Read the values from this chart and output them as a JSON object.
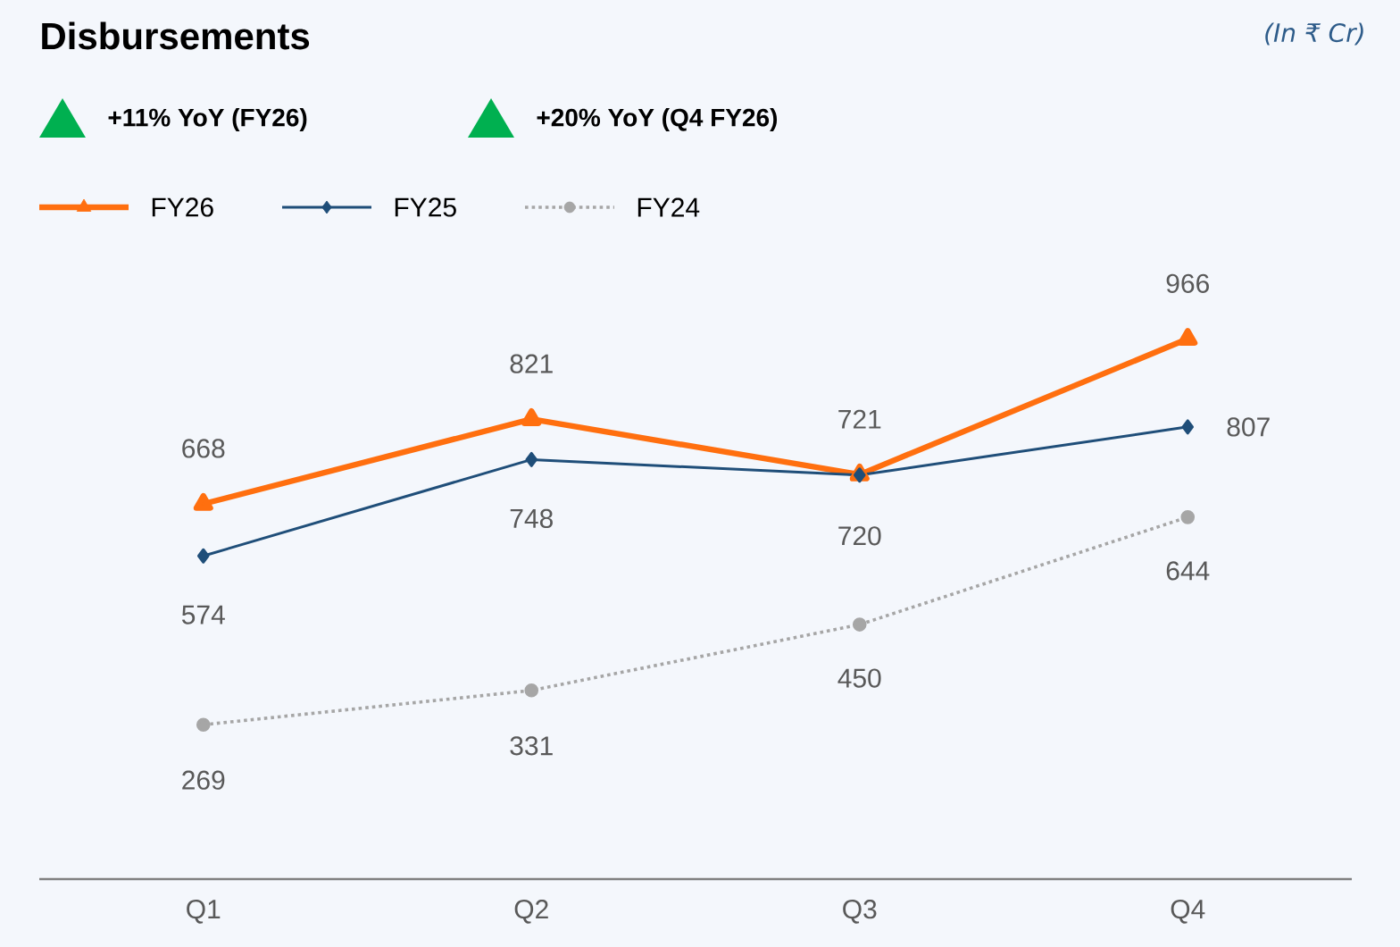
{
  "chart_data": {
    "type": "line",
    "title": "Disbursements",
    "annotations": [
      "(In ₹ Cr)",
      "+11% YoY (FY26)",
      "+20% YoY (Q4 FY26)"
    ],
    "categories": [
      "Q1",
      "Q2",
      "Q3",
      "Q4"
    ],
    "series": [
      {
        "name": "FY26",
        "color": "#ff6f0f",
        "values": [
          668,
          821,
          721,
          966
        ],
        "marker": "triangle",
        "line_style": "solid"
      },
      {
        "name": "FY25",
        "color": "#1f4e79",
        "values": [
          574,
          748,
          720,
          807
        ],
        "marker": "diamond",
        "line_style": "solid"
      },
      {
        "name": "FY24",
        "color": "#a6a6a6",
        "values": [
          269,
          331,
          450,
          644
        ],
        "marker": "circle",
        "line_style": "dotted"
      }
    ],
    "data_labels": true,
    "legend": "top left",
    "grid": false,
    "tick_labels": "x"
  }
}
